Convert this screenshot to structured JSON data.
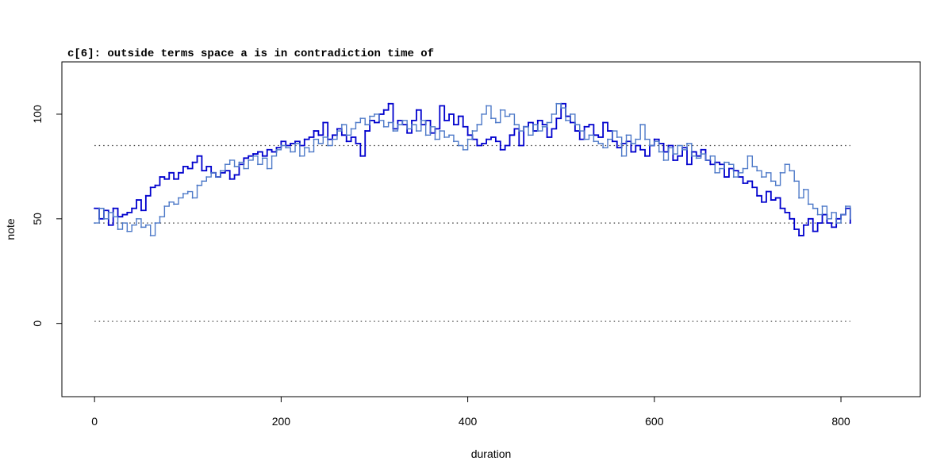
{
  "chart_data": {
    "type": "line",
    "title": "c[6]: outside terms space a is in contradiction time of",
    "xlabel": "duration",
    "ylabel": "note",
    "xlim": [
      -35,
      885
    ],
    "ylim": [
      -35,
      125
    ],
    "x_ticks": [
      0,
      200,
      400,
      600,
      800
    ],
    "y_ticks": [
      0,
      50,
      100
    ],
    "grid": false,
    "step": true,
    "reference_lines": [
      {
        "y": 85,
        "x_range": [
          0,
          810
        ],
        "style": "dotted",
        "color": "#333333"
      },
      {
        "y": 48,
        "x_range": [
          0,
          810
        ],
        "style": "dotted",
        "color": "#333333"
      },
      {
        "y": 1,
        "x_range": [
          0,
          810
        ],
        "style": "dotted",
        "color": "#333333"
      }
    ],
    "series": [
      {
        "color": "#0000cd",
        "x": [
          0,
          5,
          10,
          15,
          20,
          25,
          30,
          35,
          40,
          45,
          50,
          55,
          60,
          65,
          70,
          75,
          80,
          85,
          90,
          95,
          100,
          105,
          110,
          115,
          120,
          125,
          130,
          135,
          140,
          145,
          150,
          155,
          160,
          165,
          170,
          175,
          180,
          185,
          190,
          195,
          200,
          205,
          210,
          215,
          220,
          225,
          230,
          235,
          240,
          245,
          250,
          255,
          260,
          265,
          270,
          275,
          280,
          285,
          290,
          295,
          300,
          305,
          310,
          315,
          320,
          325,
          330,
          335,
          340,
          345,
          350,
          355,
          360,
          365,
          370,
          375,
          380,
          385,
          390,
          395,
          400,
          405,
          410,
          415,
          420,
          425,
          430,
          435,
          440,
          445,
          450,
          455,
          460,
          465,
          470,
          475,
          480,
          485,
          490,
          495,
          500,
          505,
          510,
          515,
          520,
          525,
          530,
          535,
          540,
          545,
          550,
          555,
          560,
          565,
          570,
          575,
          580,
          585,
          590,
          595,
          600,
          605,
          610,
          615,
          620,
          625,
          630,
          635,
          640,
          645,
          650,
          655,
          660,
          665,
          670,
          675,
          680,
          685,
          690,
          695,
          700,
          705,
          710,
          715,
          720,
          725,
          730,
          735,
          740,
          745,
          750,
          755,
          760,
          765,
          770,
          775,
          780,
          785,
          790,
          795,
          800,
          805,
          810
        ],
        "y": [
          55,
          50,
          54,
          47,
          55,
          51,
          52,
          53,
          55,
          59,
          54,
          61,
          65,
          66,
          70,
          69,
          72,
          69,
          72,
          75,
          74,
          77,
          80,
          73,
          75,
          72,
          70,
          72,
          73,
          69,
          71,
          76,
          79,
          80,
          81,
          82,
          80,
          83,
          82,
          84,
          87,
          85,
          86,
          87,
          85,
          88,
          89,
          92,
          90,
          96,
          88,
          90,
          93,
          90,
          87,
          89,
          86,
          80,
          92,
          97,
          96,
          100,
          102,
          105,
          93,
          97,
          95,
          91,
          97,
          102,
          95,
          97,
          91,
          93,
          104,
          97,
          100,
          95,
          99,
          94,
          90,
          88,
          85,
          86,
          88,
          89,
          87,
          83,
          85,
          90,
          93,
          85,
          94,
          96,
          92,
          97,
          95,
          89,
          93,
          98,
          105,
          99,
          96,
          92,
          88,
          94,
          95,
          90,
          89,
          96,
          92,
          87,
          84,
          86,
          87,
          82,
          85,
          83,
          80,
          85,
          88,
          86,
          82,
          85,
          78,
          80,
          84,
          76,
          82,
          80,
          83,
          78,
          76,
          77,
          76,
          70,
          74,
          73,
          70,
          67,
          68,
          65,
          61,
          58,
          63,
          59,
          60,
          55,
          53,
          50,
          45,
          42,
          47,
          50,
          44,
          48,
          52,
          48,
          46,
          50,
          52,
          55,
          48
        ]
      },
      {
        "color": "#4d79c8",
        "x": [
          0,
          5,
          10,
          15,
          20,
          25,
          30,
          35,
          40,
          45,
          50,
          55,
          60,
          65,
          70,
          75,
          80,
          85,
          90,
          95,
          100,
          105,
          110,
          115,
          120,
          125,
          130,
          135,
          140,
          145,
          150,
          155,
          160,
          165,
          170,
          175,
          180,
          185,
          190,
          195,
          200,
          205,
          210,
          215,
          220,
          225,
          230,
          235,
          240,
          245,
          250,
          255,
          260,
          265,
          270,
          275,
          280,
          285,
          290,
          295,
          300,
          305,
          310,
          315,
          320,
          325,
          330,
          335,
          340,
          345,
          350,
          355,
          360,
          365,
          370,
          375,
          380,
          385,
          390,
          395,
          400,
          405,
          410,
          415,
          420,
          425,
          430,
          435,
          440,
          445,
          450,
          455,
          460,
          465,
          470,
          475,
          480,
          485,
          490,
          495,
          500,
          505,
          510,
          515,
          520,
          525,
          530,
          535,
          540,
          545,
          550,
          555,
          560,
          565,
          570,
          575,
          580,
          585,
          590,
          595,
          600,
          605,
          610,
          615,
          620,
          625,
          630,
          635,
          640,
          645,
          650,
          655,
          660,
          665,
          670,
          675,
          680,
          685,
          690,
          695,
          700,
          705,
          710,
          715,
          720,
          725,
          730,
          735,
          740,
          745,
          750,
          755,
          760,
          765,
          770,
          775,
          780,
          785,
          790,
          795,
          800,
          805,
          810
        ],
        "y": [
          48,
          55,
          50,
          53,
          51,
          45,
          48,
          44,
          47,
          50,
          46,
          47,
          42,
          48,
          51,
          56,
          58,
          57,
          60,
          62,
          63,
          60,
          66,
          68,
          70,
          72,
          70,
          73,
          76,
          78,
          75,
          77,
          74,
          78,
          80,
          76,
          79,
          74,
          80,
          83,
          85,
          84,
          82,
          86,
          80,
          84,
          82,
          88,
          86,
          89,
          85,
          88,
          92,
          95,
          90,
          93,
          96,
          98,
          95,
          99,
          100,
          97,
          94,
          96,
          92,
          95,
          97,
          93,
          95,
          92,
          97,
          90,
          94,
          88,
          92,
          89,
          90,
          87,
          85,
          83,
          88,
          92,
          95,
          100,
          104,
          98,
          96,
          102,
          99,
          100,
          95,
          92,
          94,
          90,
          95,
          92,
          94,
          96,
          100,
          105,
          103,
          97,
          100,
          95,
          92,
          88,
          90,
          87,
          86,
          84,
          88,
          92,
          89,
          80,
          90,
          86,
          88,
          95,
          88,
          85,
          87,
          82,
          78,
          84,
          81,
          85,
          83,
          86,
          80,
          79,
          81,
          78,
          80,
          72,
          74,
          77,
          76,
          70,
          72,
          74,
          80,
          75,
          73,
          70,
          72,
          68,
          66,
          72,
          76,
          73,
          68,
          60,
          64,
          57,
          55,
          52,
          56,
          50,
          53,
          48,
          52,
          56,
          50
        ]
      }
    ]
  }
}
